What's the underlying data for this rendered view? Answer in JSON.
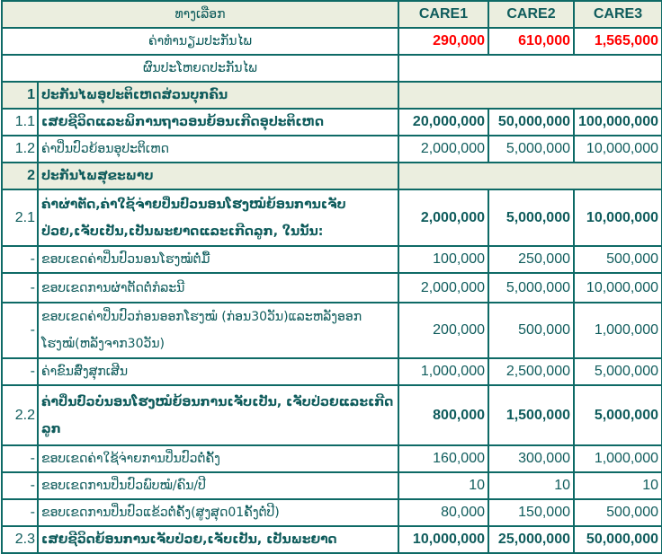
{
  "header": {
    "option_label": "ທາງເລືອກ",
    "plans": [
      "CARE1",
      "CARE2",
      "CARE3"
    ]
  },
  "premium": {
    "label": "ຄ່າທຳນຽມປະກັນໄພ",
    "values": [
      "290,000",
      "610,000",
      "1,565,000"
    ],
    "color": "#ff0000"
  },
  "benefits_label": "ຜົນປະໂຫຍດປະກັນໄພ",
  "rows": [
    {
      "no": "1",
      "label": "ປະກັນໄພອຸປະຕິເຫດສ່ວນບຸກຄົນ",
      "section": true
    },
    {
      "no": "1.1",
      "label": "ເສຍຊີວິດແລະພິການຖາວອນຍ້ອນເກີດອຸປະຕິເຫດ",
      "values": [
        "20,000,000",
        "50,000,000",
        "100,000,000"
      ],
      "bold": true
    },
    {
      "no": "1.2",
      "label": "ຄ່າປິ່ນປົວຍ້ອນອຸປະຕິເຫດ",
      "values": [
        "2,000,000",
        "5,000,000",
        "10,000,000"
      ]
    },
    {
      "no": "2",
      "label": "ປະກັນໄພສຸຂະພາບ",
      "section": true
    },
    {
      "no": "2.1",
      "label": "ຄ່າຜ່າຕັດ,ຄ່າໃຊ້ຈ່າຍປິ່ນປົວນອນໂຮງໝໍຍ້ອນການເຈັບປ່ວຍ,ເຈັບເປັນ,ເປັນພະຍາດແລະເກີດລູກ, ໃນນັ້ນ:",
      "values": [
        "2,000,000",
        "5,000,000",
        "10,000,000"
      ],
      "bold": true
    },
    {
      "no": "-",
      "label": "ຂອບເຂດຄ່າປິ່ນປົວນອນໂຮງໝໍຕໍ່ມື້",
      "values": [
        "100,000",
        "250,000",
        "500,000"
      ]
    },
    {
      "no": "-",
      "label": "ຂອບເຂດການຜ່າຕັດຕໍ່ກໍລະນີ",
      "values": [
        "2,000,000",
        "5,000,000",
        "10,000,000"
      ]
    },
    {
      "no": "-",
      "label": "ຂອບເຂດຄ່າປິ່ນປົວກ່ອນອອກໂຮງໝໍ (ກ່ອນ30ວັນ)ແລະຫລັງອອກໂຮງໝໍ(ຫລັງຈາກ30ວັນ)",
      "values": [
        "200,000",
        "500,000",
        "1,000,000"
      ]
    },
    {
      "no": "-",
      "label": "ຄ່າຂົນສົ່ງສຸກເສີນ",
      "values": [
        "1,000,000",
        "2,500,000",
        "5,000,000"
      ]
    },
    {
      "no": "2.2",
      "label": "ຄ່າປິ່ນປົວບໍ່ນອນໂຮງໝໍຍ້ອນການເຈັບເປັນ, ເຈັບປ່ວຍແລະເກີດລູກ",
      "values": [
        "800,000",
        "1,500,000",
        "5,000,000"
      ],
      "bold": true
    },
    {
      "no": "-",
      "label": "ຂອບເຂດຄ່າໃຊ້ຈ່າຍການປິ່ນປົວຕໍ່ຄັ້ງ",
      "values": [
        "160,000",
        "300,000",
        "1,000,000"
      ]
    },
    {
      "no": "-",
      "label": "ຂອບເຂດການປິ່ນປົວພົບໝໍ/ຄົນ/ປີ",
      "values": [
        "10",
        "10",
        "10"
      ]
    },
    {
      "no": "-",
      "label": "ຂອບເຂດການປິ່ນປົວແຂ້ວຕໍ່ຄັ້ງ(ສູງສຸດ01ຄັ້ງຕໍ່ປີ)",
      "values": [
        "80,000",
        "150,000",
        "500,000"
      ]
    },
    {
      "no": "2.3",
      "label": "ເສຍຊີວິດຍ້ອນການເຈັບປ່ວຍ,ເຈັບເປັນ, ເປັນພະຍາດ",
      "values": [
        "10,000,000",
        "25,000,000",
        "50,000,000"
      ],
      "bold": true
    }
  ]
}
